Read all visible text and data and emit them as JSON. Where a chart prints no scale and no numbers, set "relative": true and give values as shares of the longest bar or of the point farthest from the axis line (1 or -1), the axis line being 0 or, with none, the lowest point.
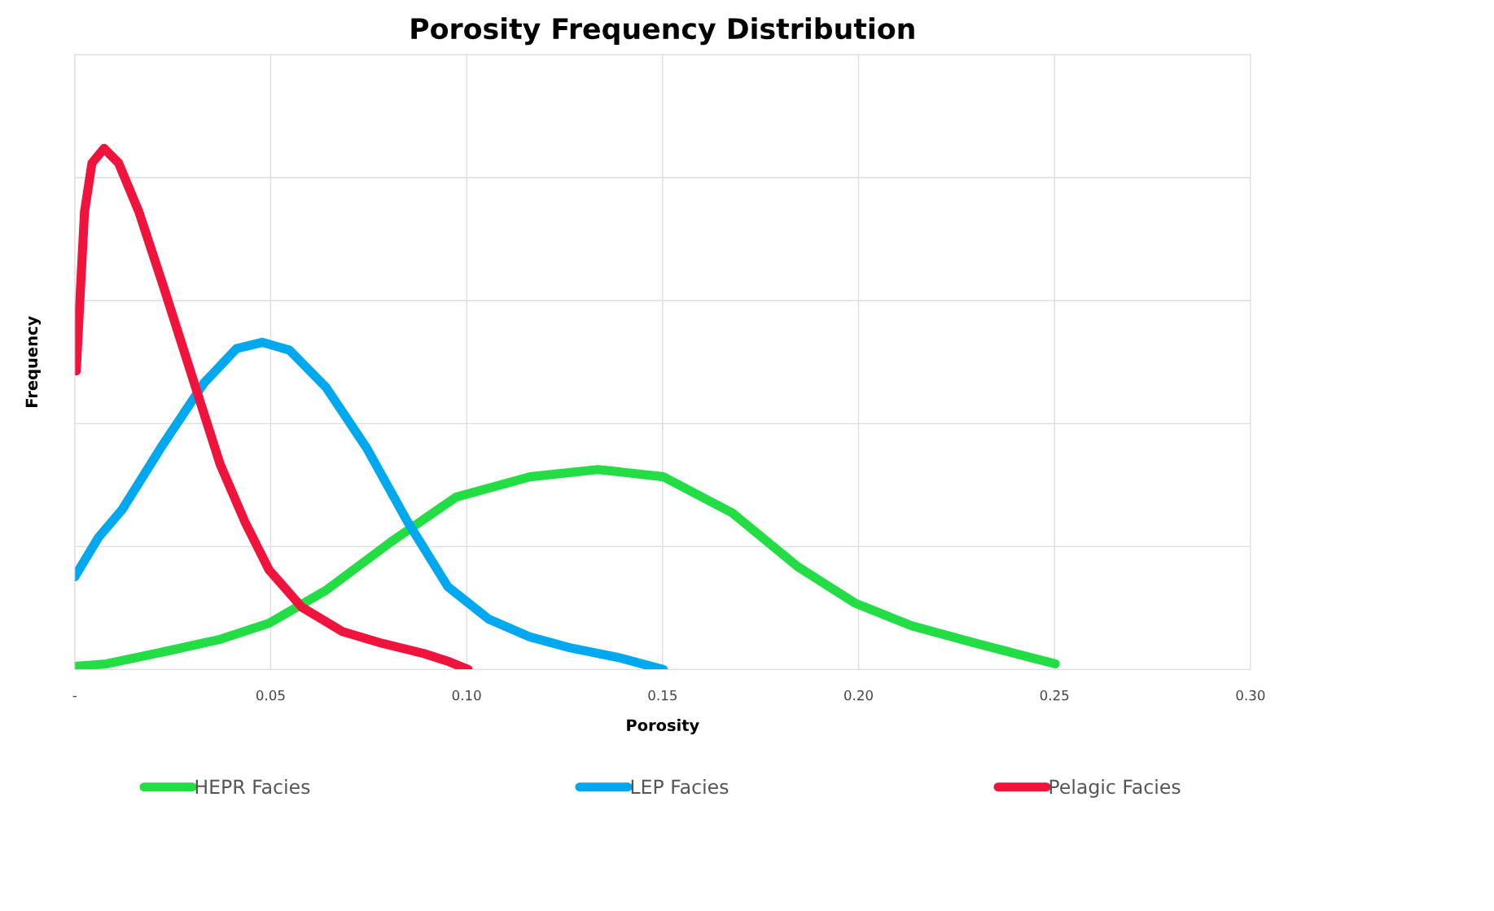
{
  "chart_data": {
    "type": "line",
    "title": "Porosity Frequency Distribution",
    "xlabel": "Porosity",
    "ylabel": "Frequency",
    "relative": true,
    "grid": true,
    "legend": "bottom",
    "line_style": "solid",
    "marker": "none",
    "xlim": [
      0,
      0.3
    ],
    "xticks": [
      {
        "value": 0,
        "label": "-"
      },
      0.05,
      {
        "value": 0.1,
        "label": "0.10"
      },
      0.15,
      {
        "value": 0.2,
        "label": "0.20"
      },
      0.25,
      {
        "value": 0.3,
        "label": "0.30"
      }
    ],
    "series": [
      {
        "name": "HEPR Facies",
        "color": "#22dd44",
        "x": [
          0,
          0.0081,
          0.0226,
          0.0371,
          0.0496,
          0.0641,
          0.0807,
          0.0973,
          0.1162,
          0.1335,
          0.1502,
          0.1679,
          0.1844,
          0.199,
          0.2135,
          0.2301,
          0.2502
        ],
        "values": [
          0.006,
          0.011,
          0.034,
          0.058,
          0.089,
          0.152,
          0.245,
          0.331,
          0.37,
          0.384,
          0.37,
          0.3,
          0.198,
          0.128,
          0.084,
          0.05,
          0.011
        ]
      },
      {
        "name": "LEP Facies",
        "color": "#00a8f0",
        "x": [
          0,
          0.006,
          0.0122,
          0.0226,
          0.033,
          0.0413,
          0.0479,
          0.0548,
          0.0641,
          0.0745,
          0.0849,
          0.0952,
          0.1056,
          0.116,
          0.1263,
          0.1388,
          0.1502
        ],
        "values": [
          0.178,
          0.253,
          0.308,
          0.433,
          0.55,
          0.616,
          0.628,
          0.613,
          0.542,
          0.425,
          0.284,
          0.159,
          0.097,
          0.063,
          0.042,
          0.023,
          0
        ]
      },
      {
        "name": "Pelagic Facies",
        "color": "#f0143c",
        "x": [
          0.0004,
          0.0012,
          0.0025,
          0.0044,
          0.0075,
          0.0112,
          0.0164,
          0.0226,
          0.0299,
          0.0371,
          0.0434,
          0.0496,
          0.0579,
          0.0683,
          0.0786,
          0.089,
          0.0952,
          0.1004
        ],
        "values": [
          0.573,
          0.691,
          0.878,
          0.972,
          1.0,
          0.972,
          0.878,
          0.736,
          0.564,
          0.394,
          0.284,
          0.191,
          0.12,
          0.073,
          0.05,
          0.031,
          0.016,
          0
        ]
      }
    ]
  }
}
